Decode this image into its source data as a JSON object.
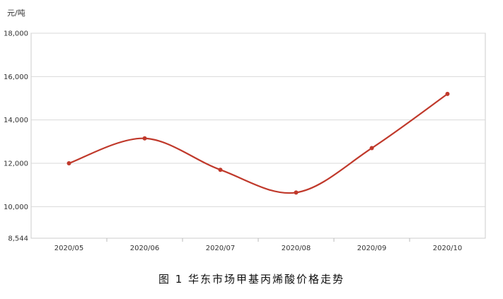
{
  "chart_data": {
    "type": "line",
    "unit": "元/吨",
    "caption": "图 1  华东市场甲基丙烯酸价格走势",
    "categories": [
      "2020/05",
      "2020/06",
      "2020/07",
      "2020/08",
      "2020/09",
      "2020/10"
    ],
    "series": [
      {
        "values": [
          12000,
          13150,
          11700,
          10650,
          12700,
          15200
        ]
      }
    ],
    "ylim": [
      8544,
      18000
    ],
    "yticks": [
      8544,
      10000,
      12000,
      14000,
      16000,
      18000
    ],
    "ytick_labels": [
      "8,544",
      "10,000",
      "12,000",
      "14,000",
      "16,000",
      "18,000"
    ],
    "grid": true,
    "line_color": "#c0392b"
  }
}
